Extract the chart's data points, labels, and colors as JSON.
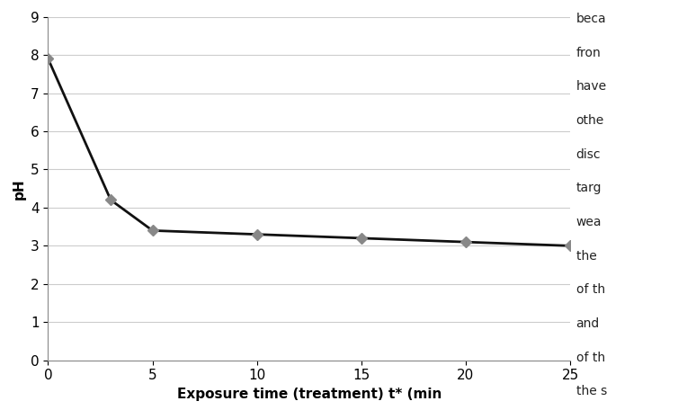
{
  "x": [
    0,
    3,
    5,
    10,
    15,
    20,
    25
  ],
  "y": [
    7.9,
    4.2,
    3.4,
    3.3,
    3.2,
    3.1,
    3.0
  ],
  "xlabel": "Exposure time (treatment) t* (min",
  "ylabel": "pH",
  "xlim": [
    0,
    25
  ],
  "ylim": [
    0,
    9
  ],
  "xticks": [
    0,
    5,
    10,
    15,
    20,
    25
  ],
  "yticks": [
    0,
    1,
    2,
    3,
    4,
    5,
    6,
    7,
    8,
    9
  ],
  "line_color": "#111111",
  "marker_color": "#888888",
  "marker_style": "D",
  "marker_size": 6,
  "line_width": 2.0,
  "background_color": "#ffffff",
  "plot_bg_color": "#ffffff",
  "xlabel_fontsize": 11,
  "ylabel_fontsize": 11,
  "tick_fontsize": 11,
  "right_text": [
    "beca",
    "fron",
    "have",
    "othe",
    "disc",
    "targ",
    "wea",
    "the ",
    "of th",
    "and",
    "of th",
    "the s"
  ],
  "right_text_color": "#222222",
  "right_bg_color": "#ffffff"
}
